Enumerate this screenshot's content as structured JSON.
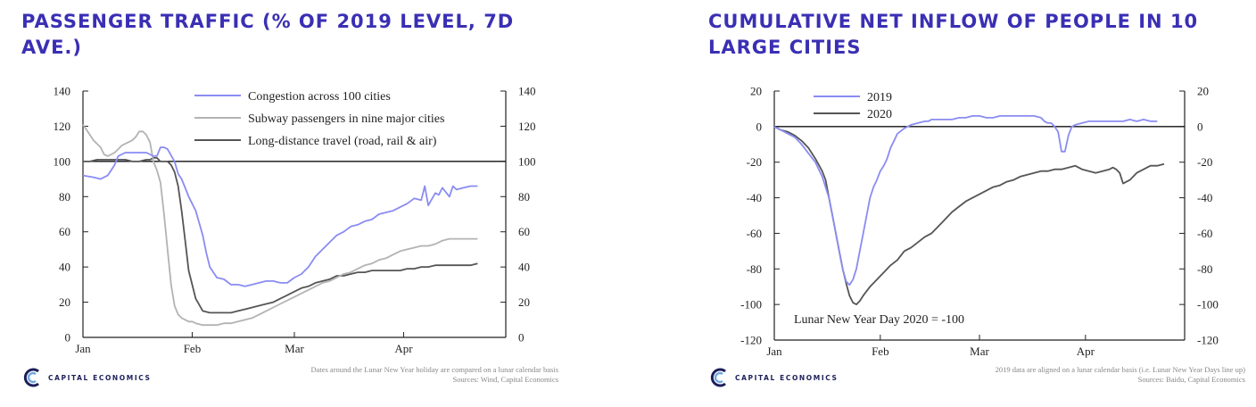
{
  "brand": {
    "name": "CAPITAL ECONOMICS"
  },
  "colors": {
    "title": "#3a2fb4",
    "blue": "#8a8cf2",
    "grey": "#b3b3b3",
    "dark": "#555555",
    "black": "#111111"
  },
  "chart_data": [
    {
      "type": "line",
      "title": "PASSENGER TRAFFIC (% OF 2019 LEVEL, 7D AVE.)",
      "xlabel": "",
      "ylabel": "",
      "x_ticks": [
        "Jan",
        "Feb",
        "Mar",
        "Apr"
      ],
      "x_tick_days": [
        0,
        31,
        60,
        91
      ],
      "xlim": [
        0,
        120
      ],
      "ylim": [
        0,
        140
      ],
      "y_ticks": [
        0,
        20,
        40,
        60,
        80,
        100,
        120,
        140
      ],
      "reference_line": 100,
      "grid": false,
      "legend_position": "top-center",
      "footnote": [
        "Dates around the Lunar New Year holiday are compared on a lunar calendar basis",
        "Sources: Wind, Capital Economics"
      ],
      "series": [
        {
          "name": "Congestion across 100 cities",
          "color": "#8a8cf2",
          "x": [
            0,
            3,
            5,
            7,
            9,
            10,
            12,
            15,
            18,
            20,
            21,
            22,
            23,
            24,
            26,
            27,
            28,
            29,
            30,
            32,
            34,
            35,
            36,
            38,
            40,
            42,
            44,
            46,
            48,
            50,
            52,
            54,
            56,
            58,
            60,
            62,
            64,
            66,
            68,
            70,
            72,
            74,
            76,
            78,
            80,
            82,
            84,
            86,
            88,
            90,
            92,
            94,
            96,
            97,
            98,
            100,
            101,
            102,
            104,
            105,
            106,
            108,
            110,
            112
          ],
          "y": [
            92,
            91,
            90,
            92,
            98,
            103,
            105,
            105,
            105,
            103,
            103,
            108,
            108,
            107,
            100,
            93,
            90,
            85,
            80,
            72,
            58,
            48,
            40,
            34,
            33,
            30,
            30,
            29,
            30,
            31,
            32,
            32,
            31,
            31,
            34,
            36,
            40,
            46,
            50,
            54,
            58,
            60,
            63,
            64,
            66,
            67,
            70,
            71,
            72,
            74,
            76,
            79,
            78,
            86,
            75,
            82,
            81,
            85,
            80,
            86,
            84,
            85,
            86,
            86
          ]
        },
        {
          "name": "Subway passengers in nine major cities",
          "color": "#b3b3b3",
          "x": [
            0,
            1,
            2,
            3,
            4,
            5,
            6,
            7,
            8,
            9,
            10,
            11,
            12,
            13,
            14,
            15,
            16,
            17,
            18,
            19,
            20,
            21,
            22,
            23,
            24,
            25,
            26,
            27,
            28,
            29,
            30,
            31,
            32,
            34,
            36,
            38,
            40,
            42,
            44,
            46,
            48,
            50,
            52,
            54,
            56,
            58,
            60,
            62,
            64,
            66,
            68,
            70,
            72,
            74,
            76,
            78,
            80,
            82,
            84,
            86,
            88,
            90,
            92,
            94,
            96,
            98,
            100,
            102,
            104,
            106,
            108,
            110,
            112
          ],
          "y": [
            121,
            118,
            115,
            112,
            110,
            108,
            104,
            103,
            104,
            105,
            107,
            109,
            110,
            111,
            112,
            114,
            117,
            117,
            115,
            111,
            100,
            95,
            88,
            70,
            50,
            30,
            18,
            13,
            11,
            10,
            9,
            9,
            8,
            7,
            7,
            7,
            8,
            8,
            9,
            10,
            11,
            13,
            15,
            17,
            19,
            21,
            23,
            25,
            27,
            29,
            31,
            32,
            34,
            36,
            37,
            39,
            41,
            42,
            44,
            45,
            47,
            49,
            50,
            51,
            52,
            52,
            53,
            55,
            56,
            56,
            56,
            56,
            56
          ]
        },
        {
          "name": "Long-distance travel (road, rail & air)",
          "color": "#555555",
          "x": [
            0,
            2,
            4,
            6,
            8,
            10,
            12,
            14,
            16,
            18,
            19,
            20,
            21,
            22,
            23,
            24,
            25,
            26,
            27,
            28,
            29,
            30,
            32,
            34,
            36,
            38,
            40,
            42,
            44,
            46,
            48,
            50,
            52,
            54,
            56,
            58,
            60,
            62,
            64,
            66,
            68,
            70,
            72,
            74,
            76,
            78,
            80,
            82,
            84,
            86,
            88,
            90,
            92,
            94,
            96,
            98,
            100,
            102,
            104,
            106,
            108,
            110,
            112
          ],
          "y": [
            100,
            100,
            101,
            101,
            101,
            101,
            101,
            100,
            100,
            101,
            101,
            102,
            102,
            100,
            100,
            100,
            98,
            94,
            86,
            72,
            55,
            38,
            22,
            15,
            14,
            14,
            14,
            14,
            15,
            16,
            17,
            18,
            19,
            20,
            22,
            24,
            26,
            28,
            29,
            31,
            32,
            33,
            35,
            35,
            36,
            37,
            37,
            38,
            38,
            38,
            38,
            38,
            39,
            39,
            40,
            40,
            41,
            41,
            41,
            41,
            41,
            41,
            42
          ]
        }
      ]
    },
    {
      "type": "line",
      "title": "CUMULATIVE NET INFLOW OF PEOPLE IN 10 LARGE CITIES",
      "xlabel": "",
      "ylabel": "",
      "x_ticks": [
        "Jan",
        "Feb",
        "Mar",
        "Apr"
      ],
      "x_tick_days": [
        0,
        31,
        60,
        91
      ],
      "xlim": [
        0,
        120
      ],
      "ylim": [
        -120,
        20
      ],
      "y_ticks": [
        20,
        0,
        -20,
        -40,
        -60,
        -80,
        -100,
        -120
      ],
      "reference_line": 0,
      "grid": false,
      "legend_position": "top-left",
      "annotation": "Lunar New Year Day 2020 = -100",
      "footnote": [
        "2019 data are aligned on a lunar calendar basis (i.e. Lunar New Year Days line up)",
        "Sources: Baidu, Capital Economics"
      ],
      "series": [
        {
          "name": "2019",
          "color": "#8a8cf2",
          "x": [
            0,
            2,
            4,
            6,
            8,
            10,
            12,
            14,
            16,
            17,
            18,
            19,
            20,
            21,
            22,
            23,
            24,
            25,
            26,
            27,
            28,
            29,
            30,
            31,
            32,
            33,
            34,
            35,
            36,
            38,
            40,
            42,
            44,
            45,
            46,
            48,
            50,
            52,
            54,
            56,
            58,
            60,
            62,
            64,
            66,
            68,
            70,
            72,
            74,
            76,
            78,
            79,
            80,
            81,
            82,
            83,
            84,
            85,
            86,
            87,
            88,
            90,
            92,
            94,
            96,
            98,
            100,
            102,
            104,
            106,
            108,
            110,
            112
          ],
          "y": [
            0,
            -2,
            -4,
            -6,
            -10,
            -15,
            -20,
            -28,
            -40,
            -50,
            -60,
            -70,
            -80,
            -87,
            -89,
            -86,
            -80,
            -70,
            -60,
            -50,
            -40,
            -34,
            -30,
            -25,
            -22,
            -18,
            -12,
            -8,
            -4,
            -1,
            1,
            2,
            3,
            3,
            4,
            4,
            4,
            4,
            5,
            5,
            6,
            6,
            5,
            5,
            6,
            6,
            6,
            6,
            6,
            6,
            5,
            3,
            2,
            2,
            0,
            -3,
            -14,
            -14,
            -5,
            0,
            1,
            2,
            3,
            3,
            3,
            3,
            3,
            3,
            4,
            3,
            4,
            3,
            3
          ]
        },
        {
          "name": "2020",
          "color": "#555555",
          "x": [
            0,
            2,
            4,
            6,
            8,
            10,
            12,
            14,
            15,
            16,
            17,
            18,
            19,
            20,
            21,
            22,
            23,
            24,
            25,
            26,
            28,
            30,
            32,
            34,
            36,
            38,
            40,
            42,
            44,
            46,
            48,
            50,
            52,
            54,
            56,
            58,
            60,
            62,
            64,
            66,
            68,
            70,
            72,
            74,
            76,
            78,
            80,
            82,
            84,
            86,
            88,
            90,
            92,
            94,
            96,
            98,
            99,
            100,
            101,
            102,
            104,
            106,
            108,
            110,
            112,
            114
          ],
          "y": [
            0,
            -2,
            -3,
            -5,
            -8,
            -12,
            -18,
            -25,
            -30,
            -40,
            -50,
            -60,
            -70,
            -80,
            -88,
            -95,
            -99,
            -100,
            -98,
            -95,
            -90,
            -86,
            -82,
            -78,
            -75,
            -70,
            -68,
            -65,
            -62,
            -60,
            -56,
            -52,
            -48,
            -45,
            -42,
            -40,
            -38,
            -36,
            -34,
            -33,
            -31,
            -30,
            -28,
            -27,
            -26,
            -25,
            -25,
            -24,
            -24,
            -23,
            -22,
            -24,
            -25,
            -26,
            -25,
            -24,
            -23,
            -24,
            -26,
            -32,
            -30,
            -26,
            -24,
            -22,
            -22,
            -21
          ]
        }
      ]
    }
  ]
}
